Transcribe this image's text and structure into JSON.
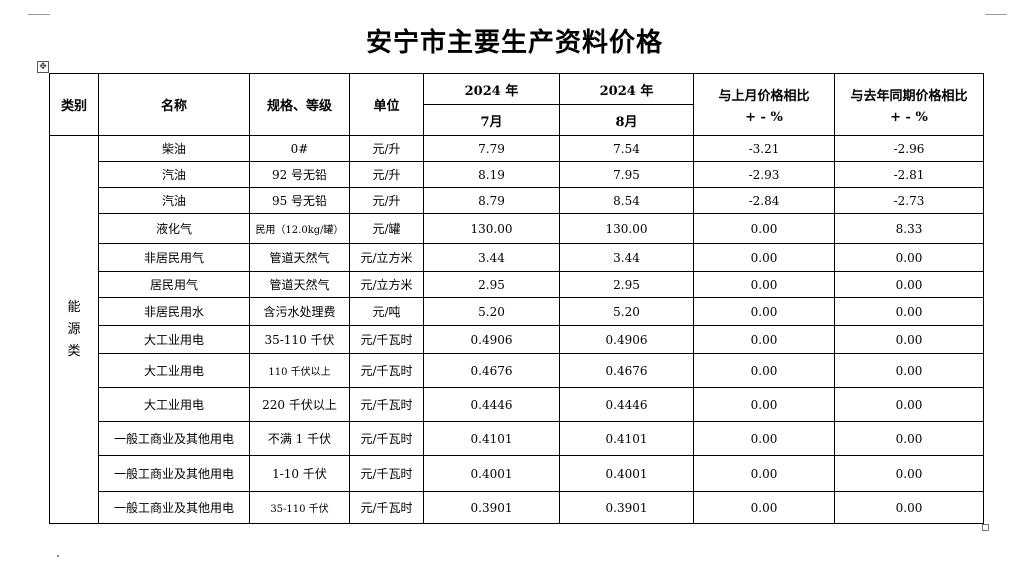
{
  "title": "安宁市主要生产资料价格",
  "header": {
    "category": "类别",
    "name": "名称",
    "spec": "规格、等级",
    "unit": "单位",
    "prev_year": "2024 年",
    "prev_month": "7月",
    "curr_year": "2024 年",
    "curr_month": "8月",
    "mom_label": "与上月价格相比",
    "mom_unit": "+ - %",
    "yoy_label": "与去年同期价格相比",
    "yoy_unit": "+ - %"
  },
  "category_chars": [
    "能",
    "源",
    "类"
  ],
  "rows": [
    {
      "name": "柴油",
      "spec": "0#",
      "unit": "元/升",
      "prev": "7.79",
      "curr": "7.54",
      "mom": "-3.21",
      "yoy": "-2.96"
    },
    {
      "name": "汽油",
      "spec": "92 号无铅",
      "unit": "元/升",
      "prev": "8.19",
      "curr": "7.95",
      "mom": "-2.93",
      "yoy": "-2.81"
    },
    {
      "name": "汽油",
      "spec": "95 号无铅",
      "unit": "元/升",
      "prev": "8.79",
      "curr": "8.54",
      "mom": "-2.84",
      "yoy": "-2.73"
    },
    {
      "name": "液化气",
      "spec": "民用（12.0kg/罐）",
      "unit": "元/罐",
      "prev": "130.00",
      "curr": "130.00",
      "mom": "0.00",
      "yoy": "8.33"
    },
    {
      "name": "非居民用气",
      "spec": "管道天然气",
      "unit": "元/立方米",
      "prev": "3.44",
      "curr": "3.44",
      "mom": "0.00",
      "yoy": "0.00"
    },
    {
      "name": "居民用气",
      "spec": "管道天然气",
      "unit": "元/立方米",
      "prev": "2.95",
      "curr": "2.95",
      "mom": "0.00",
      "yoy": "0.00"
    },
    {
      "name": "非居民用水",
      "spec": "含污水处理费",
      "unit": "元/吨",
      "prev": "5.20",
      "curr": "5.20",
      "mom": "0.00",
      "yoy": "0.00"
    },
    {
      "name": "大工业用电",
      "spec": "35-110 千伏",
      "unit": "元/千瓦时",
      "prev": "0.4906",
      "curr": "0.4906",
      "mom": "0.00",
      "yoy": "0.00"
    },
    {
      "name": "大工业用电",
      "spec": "110 千伏以上",
      "unit": "元/千瓦时",
      "prev": "0.4676",
      "curr": "0.4676",
      "mom": "0.00",
      "yoy": "0.00"
    },
    {
      "name": "大工业用电",
      "spec": "220 千伏以上",
      "unit": "元/千瓦时",
      "prev": "0.4446",
      "curr": "0.4446",
      "mom": "0.00",
      "yoy": "0.00"
    },
    {
      "name": "一般工商业及其他用电",
      "spec": "不满 1 千伏",
      "unit": "元/千瓦时",
      "prev": "0.4101",
      "curr": "0.4101",
      "mom": "0.00",
      "yoy": "0.00"
    },
    {
      "name": "一般工商业及其他用电",
      "spec": "1-10 千伏",
      "unit": "元/千瓦时",
      "prev": "0.4001",
      "curr": "0.4001",
      "mom": "0.00",
      "yoy": "0.00"
    },
    {
      "name": "一般工商业及其他用电",
      "spec": "35-110 千伏",
      "unit": "元/千瓦时",
      "prev": "0.3901",
      "curr": "0.3901",
      "mom": "0.00",
      "yoy": "0.00"
    }
  ]
}
